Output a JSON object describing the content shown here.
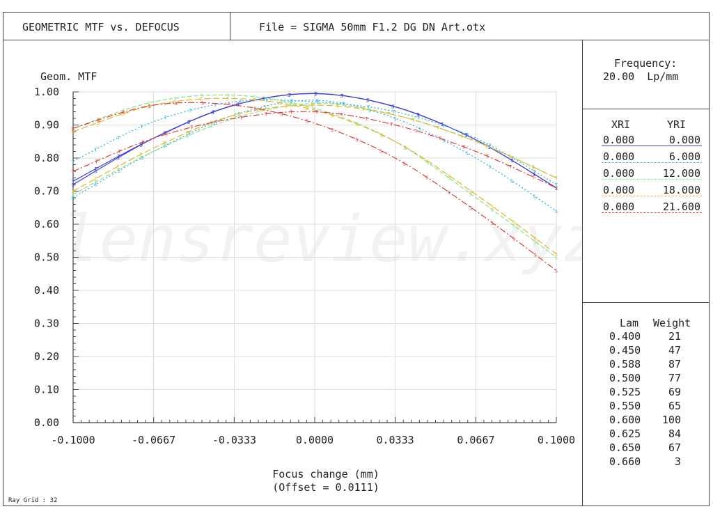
{
  "header": {
    "title": "GEOMETRIC MTF vs. DEFOCUS",
    "file": "File = SIGMA 50mm F1.2 DG DN Art.otx"
  },
  "frequency": {
    "label": "Frequency:",
    "value": "20.00  Lp/mm"
  },
  "field_table": {
    "headers": [
      "XRI",
      "YRI"
    ],
    "rows": [
      {
        "xri": "0.000",
        "yri": "0.000",
        "color": "#3a3ad8"
      },
      {
        "xri": "0.000",
        "yri": "6.000",
        "color": "#28b0d8"
      },
      {
        "xri": "0.000",
        "yri": "12.000",
        "color": "#8ae08a"
      },
      {
        "xri": "0.000",
        "yri": "18.000",
        "color": "#e0b820"
      },
      {
        "xri": "0.000",
        "yri": "21.600",
        "color": "#e03a3a"
      }
    ]
  },
  "wavelength_table": {
    "headers": [
      "Lam",
      "Weight"
    ],
    "rows": [
      {
        "lam": "0.400",
        "weight": "21"
      },
      {
        "lam": "0.450",
        "weight": "47"
      },
      {
        "lam": "0.588",
        "weight": "87"
      },
      {
        "lam": "0.500",
        "weight": "77"
      },
      {
        "lam": "0.525",
        "weight": "69"
      },
      {
        "lam": "0.550",
        "weight": "65"
      },
      {
        "lam": "0.600",
        "weight": "100"
      },
      {
        "lam": "0.625",
        "weight": "84"
      },
      {
        "lam": "0.650",
        "weight": "67"
      },
      {
        "lam": "0.660",
        "weight": "3"
      }
    ]
  },
  "ray_grid": "Ray Grid : 32",
  "watermark": "lensreview.xyz",
  "chart_data": {
    "type": "line",
    "ylabel": "Geom. MTF",
    "xlabel": "Focus change (mm)",
    "xlabel2": "(Offset = 0.0111)",
    "xlim": [
      -0.1,
      0.1
    ],
    "ylim": [
      0,
      1
    ],
    "grid": true,
    "xticks": [
      -0.1,
      -0.0667,
      -0.0333,
      0.0,
      0.0333,
      0.0667,
      0.1
    ],
    "xtick_labels": [
      "-0.1000",
      "-0.0667",
      "-0.0333",
      "0.0000",
      "0.0333",
      "0.0667",
      "0.1000"
    ],
    "yticks": [
      0,
      0.1,
      0.2,
      0.3,
      0.4,
      0.5,
      0.6,
      0.7,
      0.8,
      0.9,
      1.0
    ],
    "ytick_labels": [
      "0.00",
      "0.10",
      "0.20",
      "0.30",
      "0.40",
      "0.50",
      "0.60",
      "0.70",
      "0.80",
      "0.90",
      "1.00"
    ],
    "x": [
      -0.1,
      -0.0667,
      -0.0333,
      0.0,
      0.0333,
      0.0667,
      0.1
    ],
    "series": [
      {
        "field": "0.000 S",
        "color": "#3a3ad8",
        "dash": "",
        "marker": "S",
        "values": [
          0.72,
          0.86,
          0.96,
          0.995,
          0.955,
          0.855,
          0.71
        ]
      },
      {
        "field": "0.000 T",
        "color": "#3a3ad8",
        "dash": "",
        "marker": "T",
        "values": [
          0.73,
          0.86,
          0.96,
          0.995,
          0.955,
          0.855,
          0.71
        ]
      },
      {
        "field": "6.000 S",
        "color": "#28b0d8",
        "dash": "2,3",
        "marker": "S",
        "values": [
          0.68,
          0.82,
          0.93,
          0.975,
          0.92,
          0.8,
          0.64
        ]
      },
      {
        "field": "6.000 T",
        "color": "#28b0d8",
        "dash": "2,3",
        "marker": "T",
        "values": [
          0.79,
          0.91,
          0.97,
          0.97,
          0.94,
          0.86,
          0.72
        ]
      },
      {
        "field": "12.000 S",
        "color": "#8ae08a",
        "dash": "6,3",
        "marker": "S",
        "values": [
          0.89,
          0.97,
          0.99,
          0.95,
          0.85,
          0.68,
          0.5
        ]
      },
      {
        "field": "12.000 T",
        "color": "#8ae08a",
        "dash": "6,3",
        "marker": "T",
        "values": [
          0.69,
          0.82,
          0.92,
          0.965,
          0.93,
          0.85,
          0.74
        ]
      },
      {
        "field": "18.000 S",
        "color": "#e0b820",
        "dash": "9,4",
        "marker": "S",
        "values": [
          0.88,
          0.96,
          0.98,
          0.945,
          0.85,
          0.69,
          0.51
        ]
      },
      {
        "field": "18.000 T",
        "color": "#e0b820",
        "dash": "9,4",
        "marker": "T",
        "values": [
          0.7,
          0.83,
          0.93,
          0.96,
          0.93,
          0.85,
          0.74
        ]
      },
      {
        "field": "21.600 S",
        "color": "#e03a3a",
        "dash": "9,3,2,3",
        "marker": "S",
        "values": [
          0.89,
          0.96,
          0.96,
          0.905,
          0.8,
          0.64,
          0.46
        ]
      },
      {
        "field": "21.600 T",
        "color": "#e03a3a",
        "dash": "9,3,2,3",
        "marker": "T",
        "values": [
          0.76,
          0.86,
          0.92,
          0.94,
          0.9,
          0.82,
          0.71
        ]
      }
    ]
  }
}
